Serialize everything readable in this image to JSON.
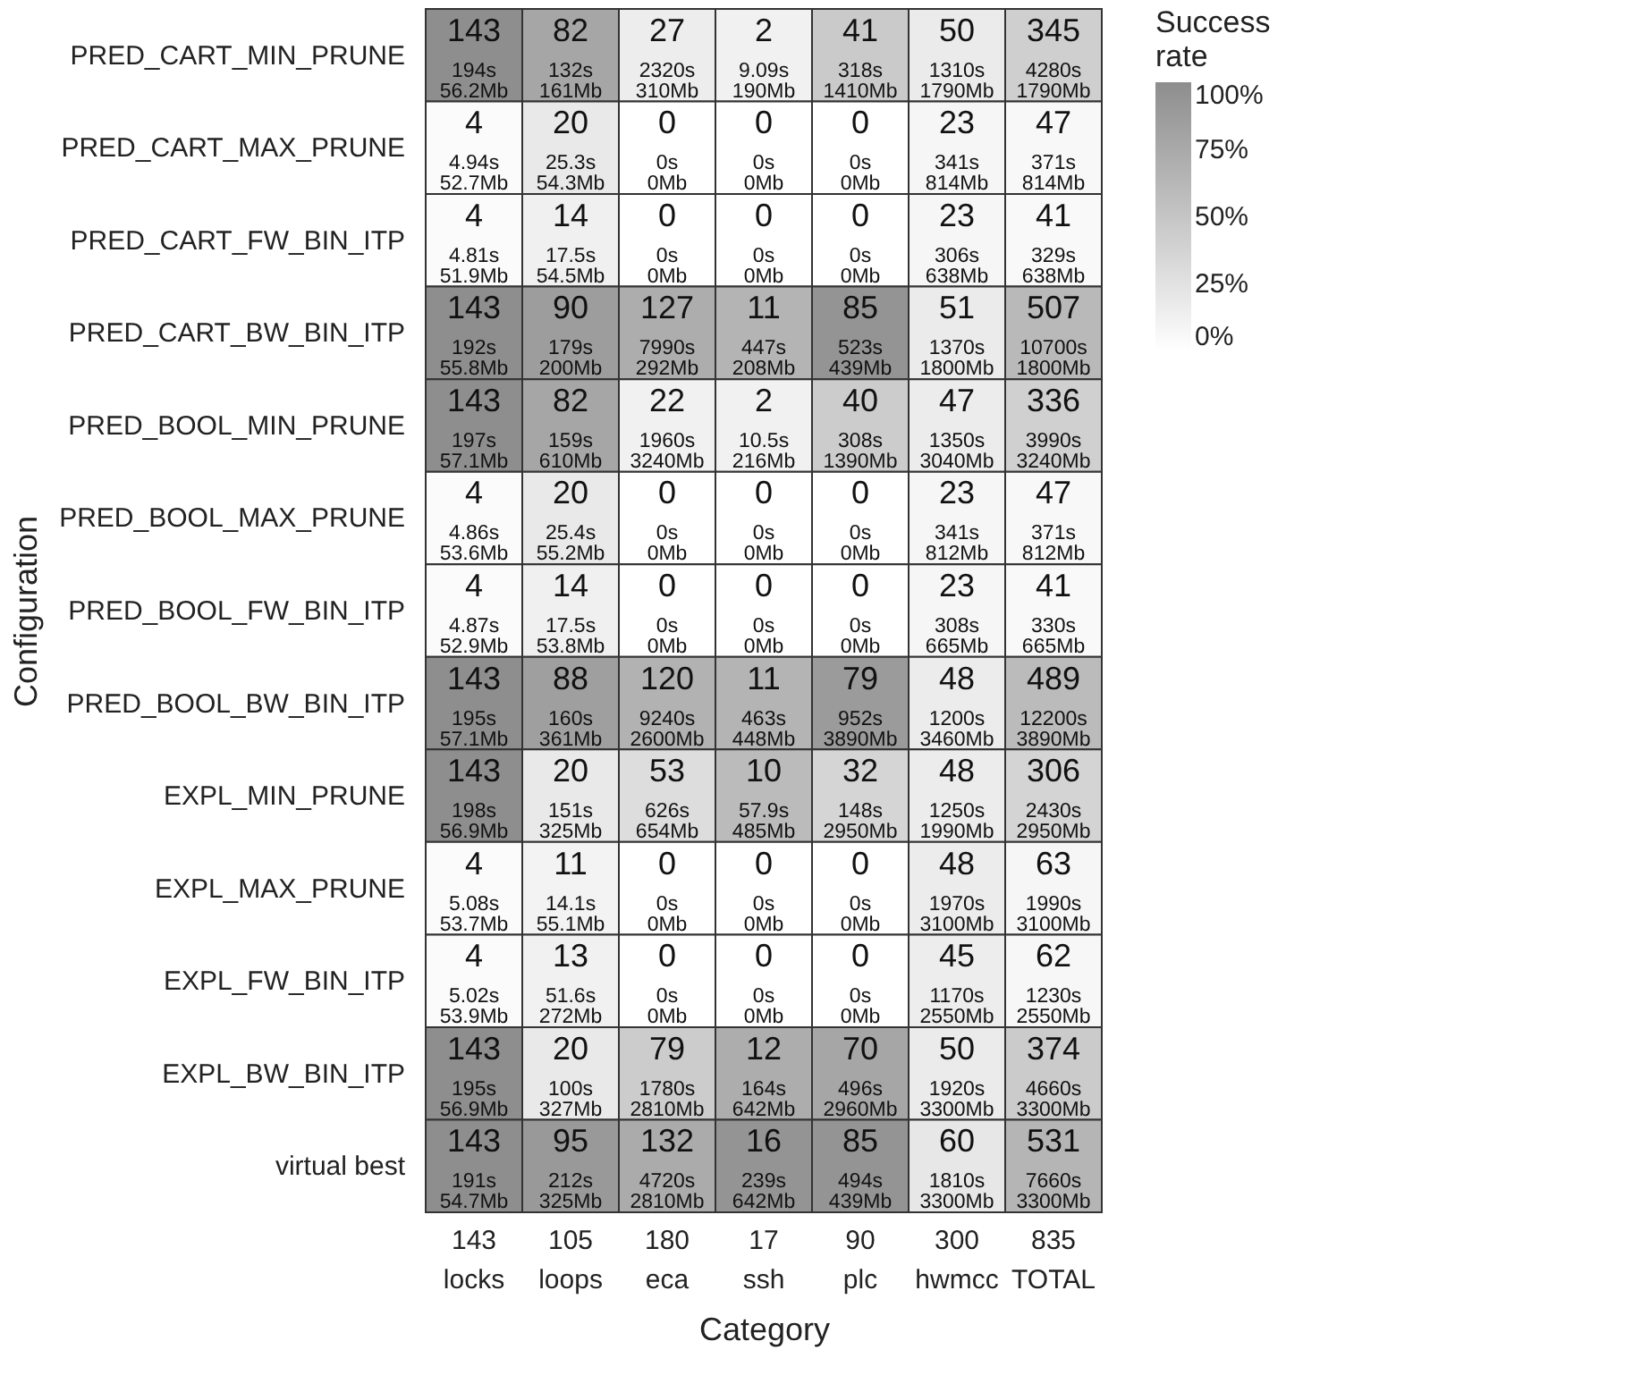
{
  "chart_data": {
    "type": "heatmap",
    "xlabel": "Category",
    "ylabel": "Configuration",
    "legend_title": "Success rate",
    "categories": [
      "143\nlocks",
      "105\nloops",
      "180\neca",
      "17\nssh",
      "90\nplc",
      "300\nhwmcc",
      "835\nTOTAL"
    ],
    "y_categories": [
      "PRED_CART_MIN_PRUNE",
      "PRED_CART_MAX_PRUNE",
      "PRED_CART_FW_BIN_ITP",
      "PRED_CART_BW_BIN_ITP",
      "PRED_BOOL_MIN_PRUNE",
      "PRED_BOOL_MAX_PRUNE",
      "PRED_BOOL_FW_BIN_ITP",
      "PRED_BOOL_BW_BIN_ITP",
      "EXPL_MIN_PRUNE",
      "EXPL_MAX_PRUNE",
      "EXPL_FW_BIN_ITP",
      "EXPL_BW_BIN_ITP",
      "virtual best"
    ],
    "cells": [
      [
        100,
        78,
        15,
        12,
        46,
        17,
        41
      ],
      [
        3,
        19,
        0,
        0,
        0,
        8,
        6
      ],
      [
        3,
        13,
        0,
        0,
        0,
        8,
        5
      ],
      [
        100,
        86,
        71,
        65,
        94,
        17,
        61
      ],
      [
        100,
        78,
        12,
        12,
        44,
        16,
        40
      ],
      [
        3,
        19,
        0,
        0,
        0,
        8,
        6
      ],
      [
        3,
        13,
        0,
        0,
        0,
        8,
        5
      ],
      [
        100,
        84,
        67,
        65,
        88,
        16,
        59
      ],
      [
        100,
        19,
        29,
        59,
        36,
        16,
        37
      ],
      [
        3,
        10,
        0,
        0,
        0,
        16,
        8
      ],
      [
        3,
        12,
        0,
        0,
        0,
        15,
        7
      ],
      [
        100,
        19,
        44,
        71,
        78,
        17,
        45
      ],
      [
        100,
        90,
        73,
        94,
        94,
        20,
        64
      ]
    ],
    "cell_labels": [
      [
        "143\n194s\n56.2Mb",
        "82\n132s\n161Mb",
        "27\n2320s\n310Mb",
        "2\n9.09s\n190Mb",
        "41\n318s\n1410Mb",
        "50\n1310s\n1790Mb",
        "345\n4280s\n1790Mb"
      ],
      [
        "4\n4.94s\n52.7Mb",
        "20\n25.3s\n54.3Mb",
        "0\n0s\n0Mb",
        "0\n0s\n0Mb",
        "0\n0s\n0Mb",
        "23\n341s\n814Mb",
        "47\n371s\n814Mb"
      ],
      [
        "4\n4.81s\n51.9Mb",
        "14\n17.5s\n54.5Mb",
        "0\n0s\n0Mb",
        "0\n0s\n0Mb",
        "0\n0s\n0Mb",
        "23\n306s\n638Mb",
        "41\n329s\n638Mb"
      ],
      [
        "143\n192s\n55.8Mb",
        "90\n179s\n200Mb",
        "127\n7990s\n292Mb",
        "11\n447s\n208Mb",
        "85\n523s\n439Mb",
        "51\n1370s\n1800Mb",
        "507\n10700s\n1800Mb"
      ],
      [
        "143\n197s\n57.1Mb",
        "82\n159s\n610Mb",
        "22\n1960s\n3240Mb",
        "2\n10.5s\n216Mb",
        "40\n308s\n1390Mb",
        "47\n1350s\n3040Mb",
        "336\n3990s\n3240Mb"
      ],
      [
        "4\n4.86s\n53.6Mb",
        "20\n25.4s\n55.2Mb",
        "0\n0s\n0Mb",
        "0\n0s\n0Mb",
        "0\n0s\n0Mb",
        "23\n341s\n812Mb",
        "47\n371s\n812Mb"
      ],
      [
        "4\n4.87s\n52.9Mb",
        "14\n17.5s\n53.8Mb",
        "0\n0s\n0Mb",
        "0\n0s\n0Mb",
        "0\n0s\n0Mb",
        "23\n308s\n665Mb",
        "41\n330s\n665Mb"
      ],
      [
        "143\n195s\n57.1Mb",
        "88\n160s\n361Mb",
        "120\n9240s\n2600Mb",
        "11\n463s\n448Mb",
        "79\n952s\n3890Mb",
        "48\n1200s\n3460Mb",
        "489\n12200s\n3890Mb"
      ],
      [
        "143\n198s\n56.9Mb",
        "20\n151s\n325Mb",
        "53\n626s\n654Mb",
        "10\n57.9s\n485Mb",
        "32\n148s\n2950Mb",
        "48\n1250s\n1990Mb",
        "306\n2430s\n2950Mb"
      ],
      [
        "4\n5.08s\n53.7Mb",
        "11\n14.1s\n55.1Mb",
        "0\n0s\n0Mb",
        "0\n0s\n0Mb",
        "0\n0s\n0Mb",
        "48\n1970s\n3100Mb",
        "63\n1990s\n3100Mb"
      ],
      [
        "4\n5.02s\n53.9Mb",
        "13\n51.6s\n272Mb",
        "0\n0s\n0Mb",
        "0\n0s\n0Mb",
        "0\n0s\n0Mb",
        "45\n1170s\n2550Mb",
        "62\n1230s\n2550Mb"
      ],
      [
        "143\n195s\n56.9Mb",
        "20\n100s\n327Mb",
        "79\n1780s\n2810Mb",
        "12\n164s\n642Mb",
        "70\n496s\n2960Mb",
        "50\n1920s\n3300Mb",
        "374\n4660s\n3300Mb"
      ],
      [
        "143\n191s\n54.7Mb",
        "95\n212s\n325Mb",
        "132\n4720s\n2810Mb",
        "16\n239s\n642Mb",
        "85\n494s\n439Mb",
        "60\n1810s\n3300Mb",
        "531\n7660s\n3300Mb"
      ]
    ],
    "clim": [
      0,
      100
    ],
    "cticks": [
      {
        "value": 0,
        "label": "0%"
      },
      {
        "value": 25,
        "label": "25%"
      },
      {
        "value": 50,
        "label": "50%"
      },
      {
        "value": 75,
        "label": "75%"
      },
      {
        "value": 100,
        "label": "100%"
      }
    ]
  }
}
